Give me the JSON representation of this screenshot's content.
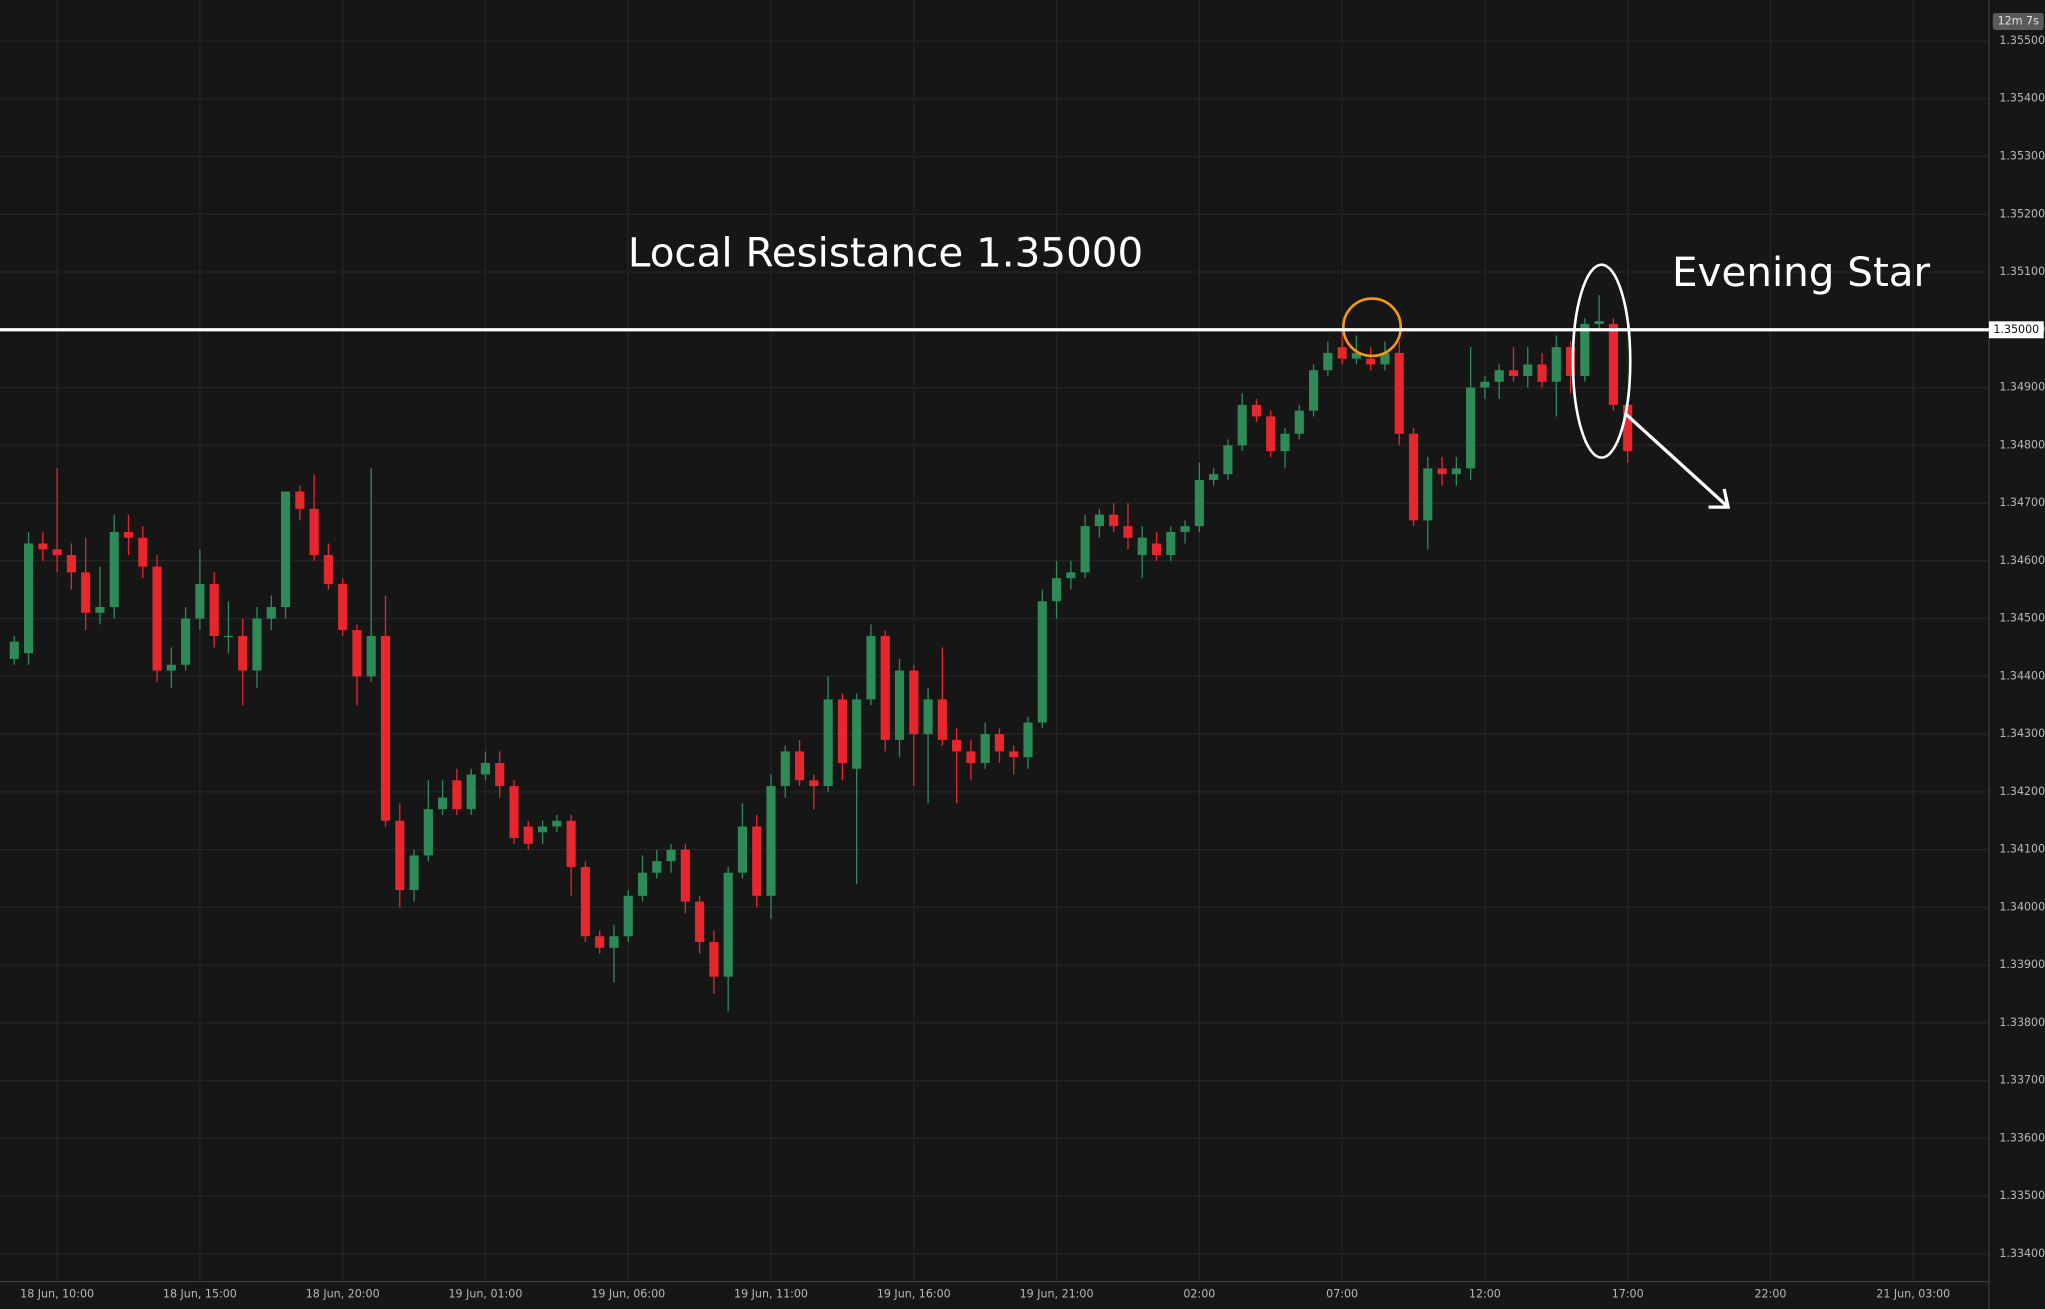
{
  "chart_data": {
    "type": "candlestick",
    "annotations": [
      "Local Resistance 1.35000",
      "Evening Star"
    ],
    "countdown": "12m 7s",
    "hline": {
      "value": 1.35,
      "label": "1.35000"
    },
    "up_color": "#2e8b57",
    "down_color": "#e8262d",
    "grid": true,
    "open": [
      1.3443,
      1.3444,
      1.3463,
      1.3462,
      1.3461,
      1.3458,
      1.3451,
      1.3452,
      1.3465,
      1.3464,
      1.3459,
      1.3441,
      1.3442,
      1.345,
      1.3456,
      1.3447,
      1.3447,
      1.3441,
      1.345,
      1.3452,
      1.3472,
      1.3469,
      1.3461,
      1.3456,
      1.3448,
      1.344,
      1.3447,
      1.3415,
      1.3403,
      1.3409,
      1.3417,
      1.3422,
      1.3417,
      1.3423,
      1.3425,
      1.3421,
      1.3414,
      1.3413,
      1.3414,
      1.3415,
      1.3407,
      1.3395,
      1.3393,
      1.3395,
      1.3402,
      1.3406,
      1.3408,
      1.341,
      1.3401,
      1.3394,
      1.3388,
      1.3406,
      1.3414,
      1.3402,
      1.3421,
      1.3427,
      1.3422,
      1.3421,
      1.3436,
      1.3424,
      1.3436,
      1.3447,
      1.3429,
      1.3441,
      1.343,
      1.3436,
      1.3429,
      1.3427,
      1.3425,
      1.343,
      1.3427,
      1.3426,
      1.3432,
      1.3453,
      1.3457,
      1.3458,
      1.3466,
      1.3468,
      1.3466,
      1.3461,
      1.3463,
      1.3461,
      1.3465,
      1.3466,
      1.3474,
      1.3475,
      1.348,
      1.3487,
      1.3485,
      1.3479,
      1.3482,
      1.3486,
      1.3493,
      1.3497,
      1.3495,
      1.3495,
      1.3494,
      1.3496,
      1.3482,
      1.3467,
      1.3476,
      1.3475,
      1.3476,
      1.349,
      1.3491,
      1.3493,
      1.3492,
      1.3494,
      1.3491,
      1.3497,
      1.3492,
      1.3501,
      1.3501,
      1.3487
    ],
    "high": [
      1.3447,
      1.3465,
      1.3465,
      1.3476,
      1.3463,
      1.3464,
      1.3459,
      1.3468,
      1.3468,
      1.3466,
      1.3461,
      1.3445,
      1.3452,
      1.3462,
      1.3458,
      1.3453,
      1.345,
      1.3452,
      1.3454,
      1.3472,
      1.3473,
      1.3475,
      1.3463,
      1.3457,
      1.3449,
      1.3476,
      1.3454,
      1.3418,
      1.341,
      1.3422,
      1.3422,
      1.3424,
      1.3424,
      1.3427,
      1.3427,
      1.3422,
      1.3415,
      1.3415,
      1.3416,
      1.3416,
      1.3408,
      1.3396,
      1.3397,
      1.3403,
      1.3409,
      1.341,
      1.3411,
      1.3411,
      1.3402,
      1.3396,
      1.3407,
      1.3418,
      1.3416,
      1.3423,
      1.3428,
      1.3429,
      1.3423,
      1.344,
      1.3437,
      1.3437,
      1.3449,
      1.3448,
      1.3443,
      1.3442,
      1.3438,
      1.3445,
      1.3431,
      1.3429,
      1.3432,
      1.3431,
      1.3428,
      1.3433,
      1.3455,
      1.346,
      1.346,
      1.3468,
      1.3469,
      1.347,
      1.347,
      1.3466,
      1.3465,
      1.3466,
      1.3467,
      1.3477,
      1.3476,
      1.3481,
      1.3489,
      1.3488,
      1.3486,
      1.3483,
      1.3487,
      1.3494,
      1.3498,
      1.35,
      1.3499,
      1.3497,
      1.3498,
      1.3498,
      1.3483,
      1.3478,
      1.3478,
      1.3478,
      1.3497,
      1.3492,
      1.3494,
      1.3497,
      1.3497,
      1.3496,
      1.3499,
      1.3498,
      1.3502,
      1.3506,
      1.3502,
      1.3488
    ],
    "low": [
      1.3442,
      1.3442,
      1.346,
      1.3458,
      1.3455,
      1.3448,
      1.3449,
      1.345,
      1.3461,
      1.3457,
      1.3439,
      1.3438,
      1.3441,
      1.3448,
      1.3445,
      1.3444,
      1.3435,
      1.3438,
      1.3448,
      1.345,
      1.3467,
      1.346,
      1.3455,
      1.3447,
      1.3435,
      1.3439,
      1.3414,
      1.34,
      1.3401,
      1.3408,
      1.3416,
      1.3416,
      1.3416,
      1.3422,
      1.3419,
      1.3411,
      1.341,
      1.3411,
      1.3413,
      1.3402,
      1.3394,
      1.3392,
      1.3387,
      1.3394,
      1.3401,
      1.3405,
      1.3406,
      1.3399,
      1.3392,
      1.3385,
      1.3382,
      1.3405,
      1.34,
      1.3398,
      1.3419,
      1.3421,
      1.3417,
      1.342,
      1.3422,
      1.3404,
      1.3435,
      1.3427,
      1.3426,
      1.3421,
      1.3418,
      1.3428,
      1.3418,
      1.3422,
      1.3424,
      1.3425,
      1.3423,
      1.3424,
      1.3431,
      1.345,
      1.3455,
      1.3457,
      1.3464,
      1.3465,
      1.3462,
      1.3457,
      1.346,
      1.346,
      1.3463,
      1.3465,
      1.3473,
      1.3474,
      1.3479,
      1.3484,
      1.3478,
      1.3476,
      1.3481,
      1.3485,
      1.3492,
      1.3494,
      1.3494,
      1.3493,
      1.3493,
      1.348,
      1.3466,
      1.3462,
      1.3473,
      1.3473,
      1.3474,
      1.3488,
      1.3488,
      1.3491,
      1.349,
      1.349,
      1.3485,
      1.3489,
      1.3491,
      1.35,
      1.3486,
      1.3477
    ],
    "close": [
      1.3446,
      1.3463,
      1.3462,
      1.3461,
      1.3458,
      1.3451,
      1.3452,
      1.3465,
      1.3464,
      1.3459,
      1.3441,
      1.3442,
      1.345,
      1.3456,
      1.3447,
      1.3447,
      1.3441,
      1.345,
      1.3452,
      1.3472,
      1.3469,
      1.3461,
      1.3456,
      1.3448,
      1.344,
      1.3447,
      1.3415,
      1.3403,
      1.3409,
      1.3417,
      1.3419,
      1.3417,
      1.3423,
      1.3425,
      1.3421,
      1.3412,
      1.3411,
      1.3414,
      1.3415,
      1.3407,
      1.3395,
      1.3393,
      1.3395,
      1.3402,
      1.3406,
      1.3408,
      1.341,
      1.3401,
      1.3394,
      1.3388,
      1.3406,
      1.3414,
      1.3402,
      1.3421,
      1.3427,
      1.3422,
      1.3421,
      1.3436,
      1.3425,
      1.3436,
      1.3447,
      1.3429,
      1.3441,
      1.343,
      1.3436,
      1.3429,
      1.3427,
      1.3425,
      1.343,
      1.3427,
      1.3426,
      1.3432,
      1.3453,
      1.3457,
      1.3458,
      1.3466,
      1.3468,
      1.3466,
      1.3464,
      1.3464,
      1.3461,
      1.3465,
      1.3466,
      1.3474,
      1.3475,
      1.348,
      1.3487,
      1.3485,
      1.3479,
      1.3482,
      1.3486,
      1.3493,
      1.3496,
      1.3495,
      1.3496,
      1.3494,
      1.3496,
      1.3482,
      1.3467,
      1.3476,
      1.3475,
      1.3476,
      1.349,
      1.3491,
      1.3493,
      1.3492,
      1.3494,
      1.3491,
      1.3497,
      1.3492,
      1.3501,
      1.35015,
      1.3487,
      1.3479
    ],
    "xlim": [
      -1,
      138.3
    ],
    "xticks": [
      {
        "value": 3,
        "label": "18 Jun, 10:00"
      },
      {
        "value": 13,
        "label": "18 Jun, 15:00"
      },
      {
        "value": 23,
        "label": "18 Jun, 20:00"
      },
      {
        "value": 33,
        "label": "19 Jun, 01:00"
      },
      {
        "value": 43,
        "label": "19 Jun, 06:00"
      },
      {
        "value": 53,
        "label": "19 Jun, 11:00"
      },
      {
        "value": 63,
        "label": "19 Jun, 16:00"
      },
      {
        "value": 73,
        "label": "19 Jun, 21:00"
      },
      {
        "value": 83,
        "label": "02:00"
      },
      {
        "value": 93,
        "label": "07:00"
      },
      {
        "value": 103,
        "label": "12:00"
      },
      {
        "value": 113,
        "label": "17:00"
      },
      {
        "value": 123,
        "label": "22:00"
      },
      {
        "value": 133,
        "label": "21 Jun, 03:00"
      }
    ],
    "ylim": [
      1.33352,
      1.35571
    ],
    "yticks": [
      {
        "value": 1.334,
        "label": "1.33400"
      },
      {
        "value": 1.335,
        "label": "1.33500"
      },
      {
        "value": 1.336,
        "label": "1.33600"
      },
      {
        "value": 1.337,
        "label": "1.33700"
      },
      {
        "value": 1.338,
        "label": "1.33800"
      },
      {
        "value": 1.339,
        "label": "1.33900"
      },
      {
        "value": 1.34,
        "label": "1.34000"
      },
      {
        "value": 1.341,
        "label": "1.34100"
      },
      {
        "value": 1.342,
        "label": "1.34200"
      },
      {
        "value": 1.343,
        "label": "1.34300"
      },
      {
        "value": 1.344,
        "label": "1.34400"
      },
      {
        "value": 1.345,
        "label": "1.34500"
      },
      {
        "value": 1.346,
        "label": "1.34600"
      },
      {
        "value": 1.347,
        "label": "1.34700"
      },
      {
        "value": 1.348,
        "label": "1.34800"
      },
      {
        "value": 1.349,
        "label": "1.34900"
      },
      {
        "value": 1.35,
        "label": "1.35000"
      },
      {
        "value": 1.351,
        "label": "1.35100"
      },
      {
        "value": 1.352,
        "label": "1.35200"
      },
      {
        "value": 1.353,
        "label": "1.35300"
      },
      {
        "value": 1.354,
        "label": "1.35400"
      },
      {
        "value": 1.355,
        "label": "1.35500"
      }
    ]
  }
}
